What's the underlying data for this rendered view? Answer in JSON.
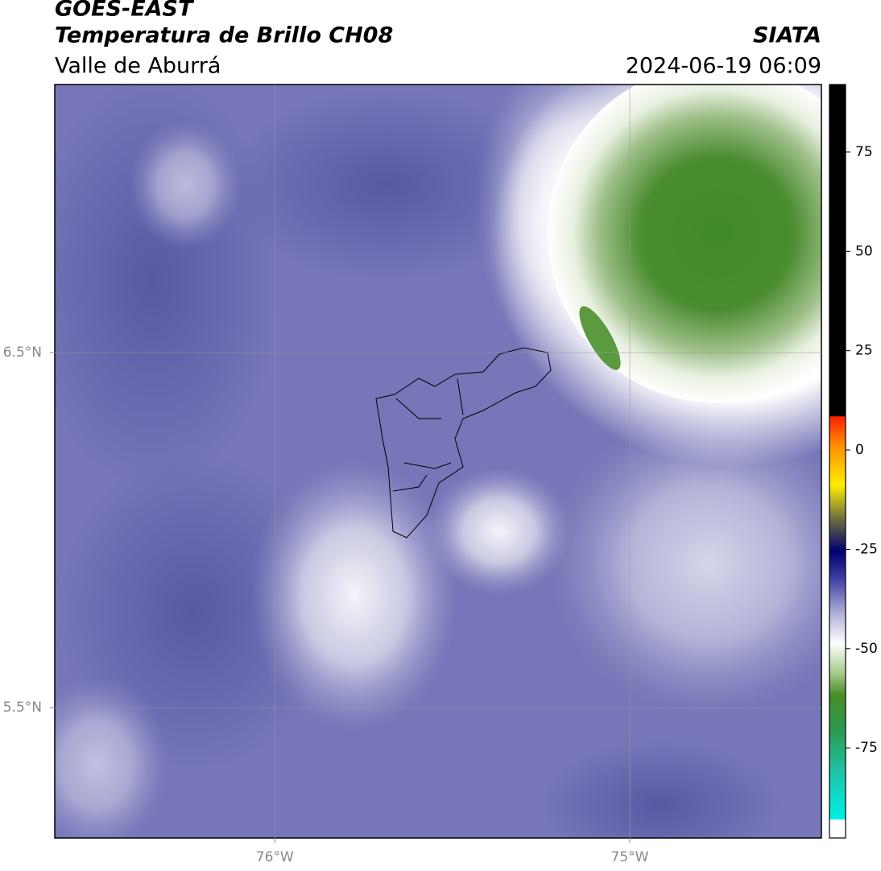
{
  "header": {
    "title": "GOES-EAST",
    "product": "Temperatura de Brillo CH08",
    "region": "Valle de Aburrá",
    "source": "SIATA",
    "datetime": "2024-06-19 06:09"
  },
  "map": {
    "xlim": [
      -76.62,
      -74.46
    ],
    "ylim": [
      5.133,
      7.255
    ],
    "xticks": [
      {
        "value": -76,
        "label": "76°W"
      },
      {
        "value": -75,
        "label": "75°W"
      }
    ],
    "yticks": [
      {
        "value": 6.5,
        "label": "6.5°N"
      },
      {
        "value": 5.5,
        "label": "5.5°N"
      }
    ],
    "grid": true
  },
  "colorbar": {
    "lim": [
      -93,
      92
    ],
    "ticks": [
      75,
      50,
      25,
      0,
      -25,
      -50,
      -75
    ]
  }
}
